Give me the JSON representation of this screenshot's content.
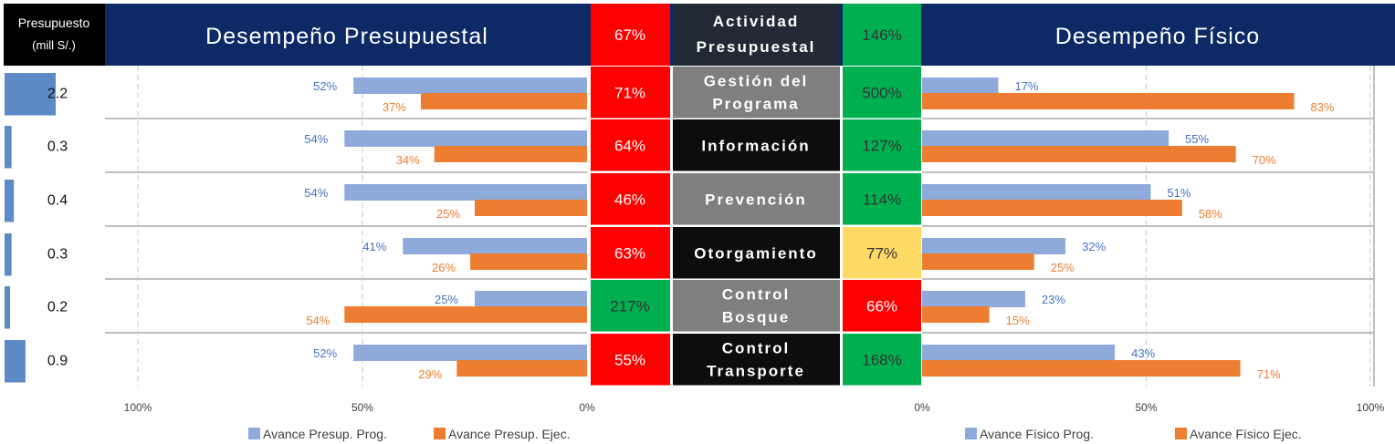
{
  "header": {
    "budget_col": "Presupuesto",
    "budget_unit": "(mill S/.)",
    "left_title": "Desempeño Presupuestal",
    "mid_left_value": "67%",
    "activity_title_line1": "Actividad",
    "activity_title_line2": "Presupuestal",
    "mid_right_value": "146%",
    "right_title": "Desempeño Físico"
  },
  "colors": {
    "header_band": "#0d2a66",
    "prog_bar": "#8eaadb",
    "ejec_bar": "#ed7d31",
    "prog_label": "#4472c4",
    "ejec_label": "#ed7d31",
    "budget_bar": "#5b8ac6",
    "status_red": "#ff0000",
    "status_green": "#00b050",
    "status_yellow": "#ffd966",
    "activity_gray": "#7f7f7f",
    "activity_black": "#0d0d0d",
    "activity_header": "#222a35"
  },
  "chart_data": {
    "type": "bar",
    "orientation": "horizontal",
    "categories": [
      "Gestión del Programa",
      "Información",
      "Prevención",
      "Otorgamiento",
      "Control Bosque",
      "Control Transporte"
    ],
    "category_lines": [
      [
        "Gestión del",
        "Programa"
      ],
      [
        "Información"
      ],
      [
        "Prevención"
      ],
      [
        "Otorgamiento"
      ],
      [
        "Control",
        "Bosque"
      ],
      [
        "Control",
        "Transporte"
      ]
    ],
    "category_style": [
      "gray",
      "black",
      "gray",
      "black",
      "gray",
      "black"
    ],
    "budget": {
      "values": [
        2.2,
        0.3,
        0.4,
        0.3,
        0.2,
        0.9
      ],
      "labels": [
        "2.2",
        "0.3",
        "0.4",
        "0.3",
        "0.2",
        "0.9"
      ],
      "unit": "mill S/."
    },
    "budget_performance": {
      "series": [
        {
          "name": "Avance Presup. Prog.",
          "values": [
            52,
            54,
            54,
            41,
            25,
            52
          ]
        },
        {
          "name": "Avance Presup. Ejec.",
          "values": [
            37,
            34,
            25,
            26,
            54,
            29
          ]
        }
      ],
      "ratio_labels": [
        "71%",
        "64%",
        "46%",
        "63%",
        "217%",
        "55%"
      ],
      "ratio_status": [
        "red",
        "red",
        "red",
        "red",
        "green",
        "red"
      ],
      "xlim": [
        100,
        0
      ],
      "ticks": [
        "100%",
        "50%",
        "0%"
      ]
    },
    "physical_performance": {
      "series": [
        {
          "name": "Avance Físico Prog.",
          "values": [
            17,
            55,
            51,
            32,
            23,
            43
          ]
        },
        {
          "name": "Avance Físico Ejec.",
          "values": [
            83,
            70,
            58,
            25,
            15,
            71
          ]
        }
      ],
      "ratio_labels": [
        "500%",
        "127%",
        "114%",
        "77%",
        "66%",
        "168%"
      ],
      "ratio_status": [
        "green",
        "green",
        "green",
        "yellow",
        "red",
        "green"
      ],
      "xlim": [
        0,
        100
      ],
      "ticks": [
        "0%",
        "50%",
        "100%"
      ]
    },
    "legend_placement": "bottom",
    "grid": true
  }
}
